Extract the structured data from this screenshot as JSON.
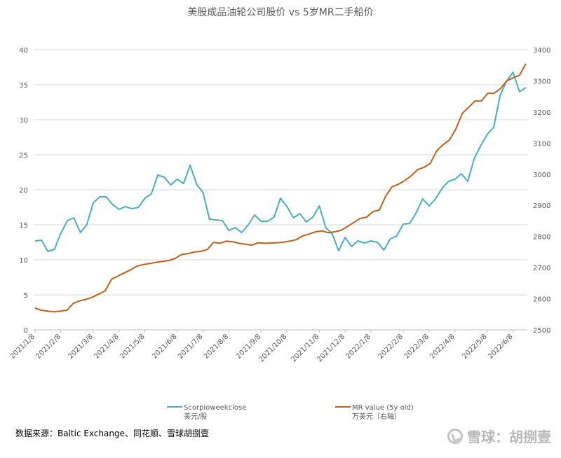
{
  "chart_data": {
    "type": "line",
    "title": "美股成品油轮公司股价 vs 5岁MR二手船价",
    "x_tick_labels": [
      "2021/1/8",
      "2021/2/8",
      "2021/3/8",
      "2021/4/8",
      "2021/5/8",
      "2021/6/8",
      "2021/7/8",
      "2021/8/8",
      "2021/9/8",
      "2021/10/8",
      "2021/11/8",
      "2021/12/8",
      "2022/1/8",
      "2022/2/8",
      "2022/3/8",
      "2022/4/8",
      "2022/5/8",
      "2022/6/8"
    ],
    "y_left": {
      "min": 0,
      "max": 40,
      "ticks": [
        0,
        5,
        10,
        15,
        20,
        25,
        30,
        35,
        40
      ]
    },
    "y_right": {
      "min": 2500,
      "max": 3400,
      "ticks": [
        2500,
        2600,
        2700,
        2800,
        2900,
        3000,
        3100,
        3200,
        3300,
        3400
      ]
    },
    "grid": "horizontal",
    "legend_position": "bottom",
    "series": [
      {
        "name": "Scorpioweekclose",
        "unit_label": "美元/股",
        "axis": "left",
        "color": "#4bacc6",
        "values": [
          12.7,
          12.8,
          11.2,
          11.5,
          13.8,
          15.6,
          16.0,
          13.9,
          15.0,
          18.1,
          19.0,
          19.0,
          17.9,
          17.2,
          17.6,
          17.3,
          17.5,
          18.8,
          19.4,
          22.1,
          21.8,
          20.7,
          21.5,
          20.9,
          23.5,
          20.8,
          19.6,
          15.8,
          15.7,
          15.6,
          14.2,
          14.6,
          13.9,
          15.0,
          16.4,
          15.5,
          15.5,
          16.1,
          18.8,
          17.6,
          16.0,
          16.6,
          15.4,
          16.1,
          17.7,
          14.6,
          13.7,
          11.3,
          13.2,
          11.9,
          12.7,
          12.4,
          12.7,
          12.5,
          11.4,
          13.0,
          13.4,
          15.1,
          15.2,
          16.7,
          18.7,
          17.7,
          18.7,
          20.2,
          21.2,
          21.5,
          22.3,
          21.2,
          24.5,
          26.3,
          27.9,
          28.9,
          33.5,
          35.5,
          36.8,
          34.0,
          34.6
        ]
      },
      {
        "name": "MR value (5y old)",
        "unit_label": "万美元（右轴）",
        "axis": "right",
        "color": "#c0601f",
        "values": [
          2570,
          2563,
          2560,
          2558,
          2560,
          2563,
          2585,
          2593,
          2598,
          2605,
          2615,
          2625,
          2663,
          2673,
          2683,
          2693,
          2705,
          2710,
          2713,
          2717,
          2720,
          2723,
          2730,
          2742,
          2745,
          2750,
          2752,
          2758,
          2781,
          2778,
          2785,
          2783,
          2778,
          2775,
          2772,
          2780,
          2778,
          2779,
          2780,
          2782,
          2785,
          2790,
          2802,
          2808,
          2815,
          2818,
          2812,
          2815,
          2820,
          2832,
          2845,
          2858,
          2862,
          2880,
          2885,
          2930,
          2960,
          2968,
          2980,
          2995,
          3015,
          3022,
          3035,
          3075,
          3095,
          3110,
          3145,
          3195,
          3215,
          3235,
          3235,
          3260,
          3260,
          3275,
          3300,
          3310,
          3318,
          3355
        ]
      }
    ]
  },
  "footer": {
    "source": "数据来源：Baltic Exchange、同花顺、雪球胡捌壹",
    "watermark": "雪球：胡捌壹"
  }
}
